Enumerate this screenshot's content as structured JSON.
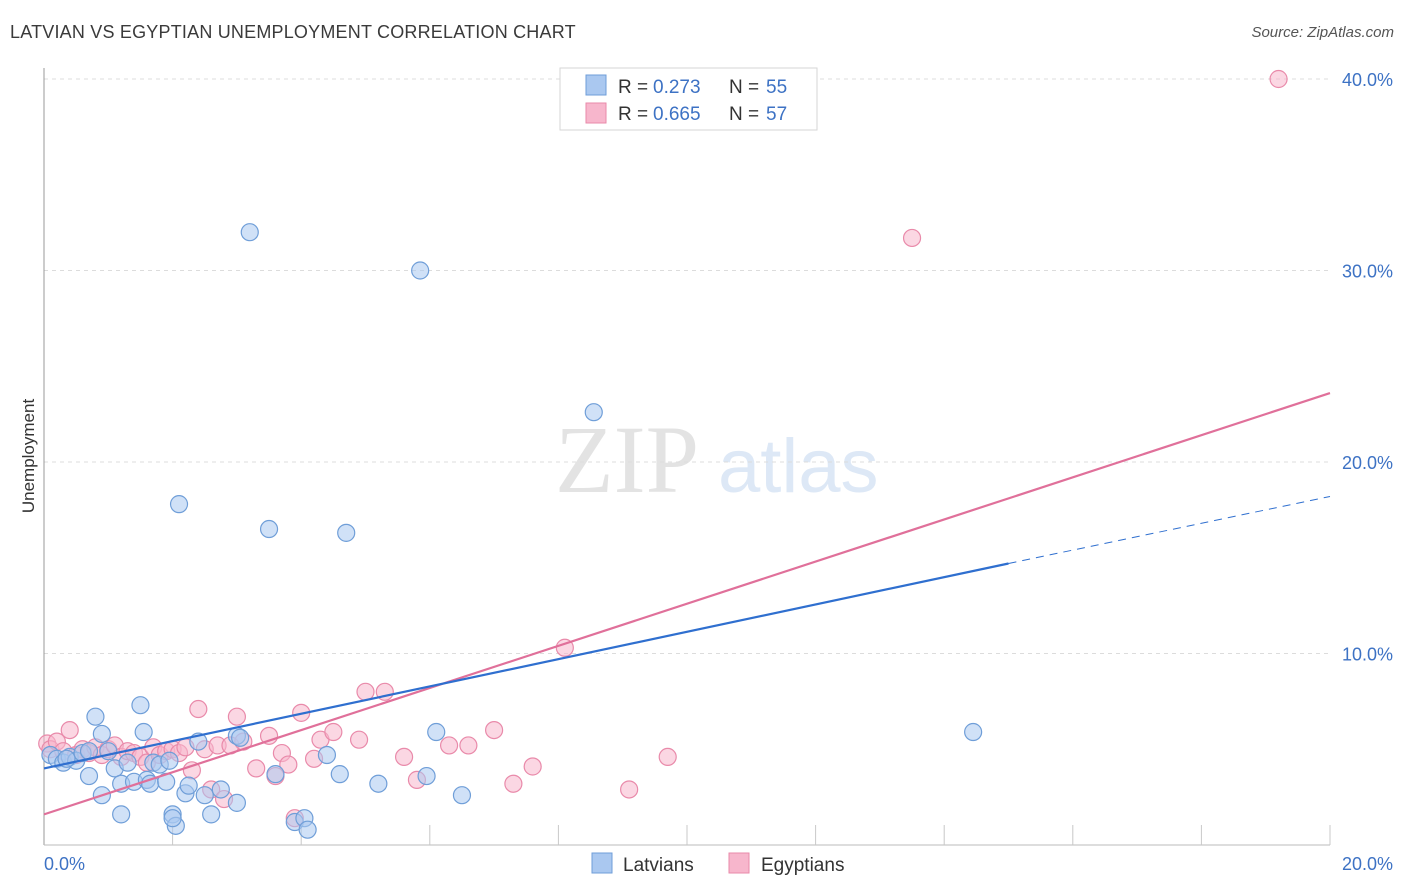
{
  "header": {
    "title": "LATVIAN VS EGYPTIAN UNEMPLOYMENT CORRELATION CHART",
    "source": "Source: ZipAtlas.com"
  },
  "watermark": {
    "zip": "ZIP",
    "atlas": "atlas"
  },
  "colors": {
    "latvian_fill": "#aac8f0",
    "latvian_stroke": "#6f9ed8",
    "latvian_line": "#2f6fcf",
    "egyptian_fill": "#f7b6cc",
    "egyptian_stroke": "#e98aaa",
    "egyptian_line": "#e0709a",
    "tick": "#3d72c4"
  },
  "legend": {
    "rows": [
      {
        "r_label": "R = ",
        "r_value": "0.273",
        "n_label": "N = ",
        "n_value": "55"
      },
      {
        "r_label": "R = ",
        "r_value": "0.665",
        "n_label": "N = ",
        "n_value": "57"
      }
    ]
  },
  "chart_data": {
    "type": "scatter",
    "title": "LATVIAN VS EGYPTIAN UNEMPLOYMENT CORRELATION CHART",
    "xlabel": "",
    "ylabel": "Unemployment",
    "xlim": [
      0,
      20
    ],
    "ylim": [
      0,
      40
    ],
    "x_tick_labels": [
      "0.0%",
      "20.0%"
    ],
    "y_ticks": [
      10,
      20,
      30,
      40
    ],
    "y_tick_labels": [
      "10.0%",
      "20.0%",
      "30.0%",
      "40.0%"
    ],
    "grid": true,
    "legend_position": "top-center",
    "series": [
      {
        "name": "Latvians",
        "r": 0.273,
        "n": 55,
        "trend": {
          "x0": 0,
          "y0": 4.0,
          "x1": 15.0,
          "y1": 14.7,
          "dash_to_x": 20,
          "dash_to_y": 18.2
        },
        "points": [
          [
            0.1,
            4.7
          ],
          [
            0.2,
            4.5
          ],
          [
            0.3,
            4.3
          ],
          [
            0.4,
            4.6
          ],
          [
            0.5,
            4.4
          ],
          [
            0.6,
            4.8
          ],
          [
            0.7,
            4.9
          ],
          [
            0.8,
            6.7
          ],
          [
            0.9,
            5.8
          ],
          [
            0.7,
            3.6
          ],
          [
            0.9,
            2.6
          ],
          [
            1.0,
            4.9
          ],
          [
            1.1,
            4.0
          ],
          [
            1.2,
            3.2
          ],
          [
            1.3,
            4.3
          ],
          [
            1.4,
            3.3
          ],
          [
            1.5,
            7.3
          ],
          [
            1.55,
            5.9
          ],
          [
            1.6,
            3.4
          ],
          [
            1.65,
            3.2
          ],
          [
            1.7,
            4.3
          ],
          [
            1.8,
            4.2
          ],
          [
            1.9,
            3.3
          ],
          [
            1.95,
            4.4
          ],
          [
            2.0,
            1.6
          ],
          [
            2.05,
            1.0
          ],
          [
            2.1,
            17.8
          ],
          [
            2.2,
            2.7
          ],
          [
            2.25,
            3.1
          ],
          [
            2.4,
            5.4
          ],
          [
            2.5,
            2.6
          ],
          [
            2.6,
            1.6
          ],
          [
            2.75,
            2.9
          ],
          [
            3.0,
            2.2
          ],
          [
            3.0,
            5.7
          ],
          [
            3.2,
            32.0
          ],
          [
            3.5,
            16.5
          ],
          [
            3.6,
            3.7
          ],
          [
            3.9,
            1.2
          ],
          [
            4.05,
            1.4
          ],
          [
            4.1,
            0.8
          ],
          [
            4.4,
            4.7
          ],
          [
            4.6,
            3.7
          ],
          [
            4.7,
            16.3
          ],
          [
            5.2,
            3.2
          ],
          [
            5.85,
            30.0
          ],
          [
            5.95,
            3.6
          ],
          [
            6.1,
            5.9
          ],
          [
            6.5,
            2.6
          ],
          [
            8.55,
            22.6
          ],
          [
            14.45,
            5.9
          ],
          [
            0.35,
            4.5
          ],
          [
            1.2,
            1.6
          ],
          [
            2.0,
            1.4
          ],
          [
            3.05,
            5.6
          ]
        ]
      },
      {
        "name": "Egyptians",
        "r": 0.665,
        "n": 57,
        "trend": {
          "x0": 0,
          "y0": 1.6,
          "x1": 20,
          "y1": 23.6
        },
        "points": [
          [
            0.05,
            5.3
          ],
          [
            0.1,
            5.0
          ],
          [
            0.2,
            5.4
          ],
          [
            0.3,
            4.9
          ],
          [
            0.4,
            6.0
          ],
          [
            0.5,
            4.7
          ],
          [
            0.6,
            5.0
          ],
          [
            0.7,
            4.8
          ],
          [
            0.8,
            5.1
          ],
          [
            0.9,
            4.7
          ],
          [
            1.0,
            5.0
          ],
          [
            1.1,
            5.2
          ],
          [
            1.2,
            4.6
          ],
          [
            1.3,
            4.9
          ],
          [
            1.4,
            4.8
          ],
          [
            1.5,
            4.6
          ],
          [
            1.6,
            4.3
          ],
          [
            1.7,
            5.1
          ],
          [
            1.8,
            4.7
          ],
          [
            1.9,
            4.9
          ],
          [
            2.0,
            5.0
          ],
          [
            2.1,
            4.8
          ],
          [
            2.2,
            5.1
          ],
          [
            2.3,
            3.9
          ],
          [
            2.4,
            7.1
          ],
          [
            2.5,
            5.0
          ],
          [
            2.6,
            2.9
          ],
          [
            2.7,
            5.2
          ],
          [
            2.8,
            2.4
          ],
          [
            2.9,
            5.2
          ],
          [
            3.0,
            6.7
          ],
          [
            3.1,
            5.4
          ],
          [
            3.3,
            4.0
          ],
          [
            3.5,
            5.7
          ],
          [
            3.6,
            3.6
          ],
          [
            3.7,
            4.8
          ],
          [
            3.8,
            4.2
          ],
          [
            3.9,
            1.4
          ],
          [
            4.0,
            6.9
          ],
          [
            4.2,
            4.5
          ],
          [
            4.3,
            5.5
          ],
          [
            4.5,
            5.9
          ],
          [
            4.9,
            5.5
          ],
          [
            5.0,
            8.0
          ],
          [
            5.3,
            8.0
          ],
          [
            5.6,
            4.6
          ],
          [
            5.8,
            3.4
          ],
          [
            6.3,
            5.2
          ],
          [
            6.6,
            5.2
          ],
          [
            7.0,
            6.0
          ],
          [
            7.3,
            3.2
          ],
          [
            7.6,
            4.1
          ],
          [
            8.1,
            10.3
          ],
          [
            9.1,
            2.9
          ],
          [
            9.7,
            4.6
          ],
          [
            13.5,
            31.7
          ],
          [
            19.2,
            40.0
          ]
        ]
      }
    ]
  },
  "bottom_legend": {
    "latvians": "Latvians",
    "egyptians": "Egyptians"
  }
}
